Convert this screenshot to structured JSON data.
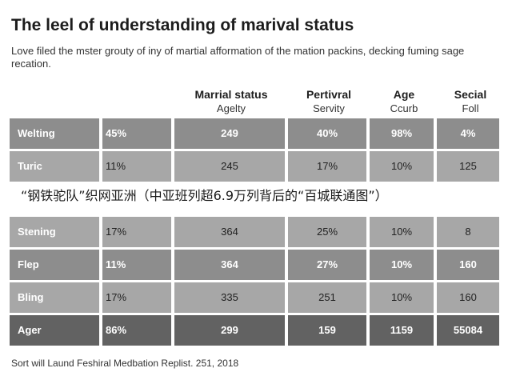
{
  "document": {
    "title": "The leel of understanding of marival status",
    "subtitle": "Love filed the mster grouty of iny of martial afformation of the mation packins, decking fuming sage recation.",
    "footer": "Sort will Laund Feshiral Medbation Replist. 251, 2018"
  },
  "table": {
    "headers": [
      {
        "line1": "Marrial status",
        "line2": "Agelty"
      },
      {
        "line1": "Pertivral",
        "line2": "Servity"
      },
      {
        "line1": "Age",
        "line2": "Ccurb"
      },
      {
        "line1": "Secial",
        "line2": "Foll"
      }
    ],
    "rows": [
      {
        "label": "Welting",
        "pct": "45%",
        "c1": "249",
        "c2": "40%",
        "c3": "98%",
        "c4": "4%"
      },
      {
        "label": "Turic",
        "pct": "11%",
        "c1": "245",
        "c2": "17%",
        "c3": "10%",
        "c4": "125"
      },
      {
        "label": "Stening",
        "pct": "17%",
        "c1": "364",
        "c2": "25%",
        "c3": "10%",
        "c4": "8"
      },
      {
        "label": "Flep",
        "pct": "11%",
        "c1": "364",
        "c2": "27%",
        "c3": "10%",
        "c4": "160"
      },
      {
        "label": "Bling",
        "pct": "17%",
        "c1": "335",
        "c2": "251",
        "c3": "10%",
        "c4": "160"
      },
      {
        "label": "Ager",
        "pct": "86%",
        "c1": "299",
        "c2": "159",
        "c3": "1159",
        "c4": "55084"
      }
    ]
  },
  "overlay_caption": "“钢铁驼队”织网亚洲（中亚班列超6.9万列背后的“百城联通图”）"
}
